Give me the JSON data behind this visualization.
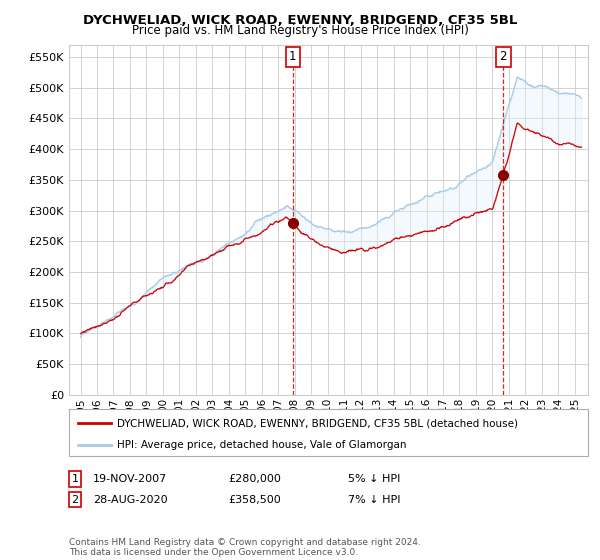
{
  "title": "DYCHWELIAD, WICK ROAD, EWENNY, BRIDGEND, CF35 5BL",
  "subtitle": "Price paid vs. HM Land Registry's House Price Index (HPI)",
  "ylim": [
    0,
    570000
  ],
  "ytick_values": [
    0,
    50000,
    100000,
    150000,
    200000,
    250000,
    300000,
    350000,
    400000,
    450000,
    500000,
    550000
  ],
  "sale1": {
    "date_num": 2007.89,
    "price": 280000,
    "label": "1",
    "text": "19-NOV-2007",
    "amount": "£280,000",
    "note": "5% ↓ HPI"
  },
  "sale2": {
    "date_num": 2020.66,
    "price": 358500,
    "label": "2",
    "text": "28-AUG-2020",
    "amount": "£358,500",
    "note": "7% ↓ HPI"
  },
  "legend_line1": "DYCHWELIAD, WICK ROAD, EWENNY, BRIDGEND, CF35 5BL (detached house)",
  "legend_line2": "HPI: Average price, detached house, Vale of Glamorgan",
  "footer": "Contains HM Land Registry data © Crown copyright and database right 2024.\nThis data is licensed under the Open Government Licence v3.0.",
  "hpi_color": "#a8cce8",
  "hpi_fill_color": "#ddeef8",
  "price_color": "#cc0000",
  "vline_color": "#cc0000",
  "grid_color": "#cccccc",
  "bg_color": "#ffffff",
  "plot_bg_color": "#ffffff"
}
